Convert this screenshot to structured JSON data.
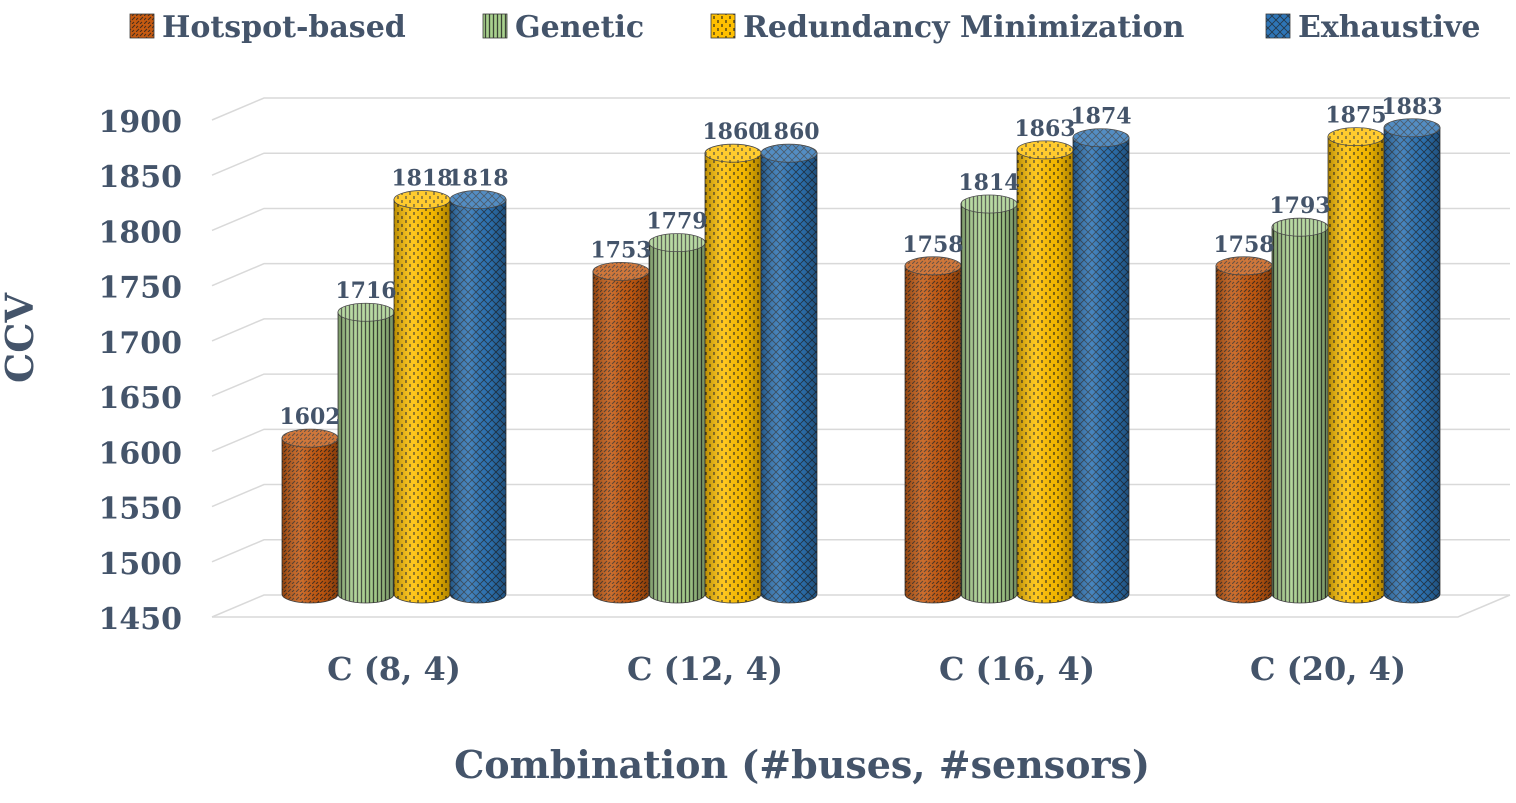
{
  "chart_data": {
    "type": "bar",
    "style": "3d-cylinder",
    "title": "",
    "xlabel": "Combination (#buses, #sensors)",
    "ylabel": "CCV",
    "ylim": [
      1450,
      1900
    ],
    "yticks": [
      1450,
      1500,
      1550,
      1600,
      1650,
      1700,
      1750,
      1800,
      1850,
      1900
    ],
    "categories": [
      "C (8, 4)",
      "C (12, 4)",
      "C (16, 4)",
      "C (20, 4)"
    ],
    "series": [
      {
        "name": "Hotspot-based",
        "values": [
          1602,
          1753,
          1758,
          1758
        ],
        "color": "#c55a11",
        "pattern": "diagonal-dash"
      },
      {
        "name": "Genetic",
        "values": [
          1716,
          1779,
          1814,
          1793
        ],
        "color": "#a9d18e",
        "pattern": "vertical-lines"
      },
      {
        "name": "Redundancy Minimization",
        "values": [
          1818,
          1860,
          1863,
          1875
        ],
        "color": "#ffc000",
        "pattern": "vertical-dash"
      },
      {
        "name": "Exhaustive",
        "values": [
          1818,
          1860,
          1874,
          1883
        ],
        "color": "#2e75b6",
        "pattern": "crosshatch"
      }
    ],
    "legend": "top",
    "grid": true,
    "data_labels": true
  }
}
